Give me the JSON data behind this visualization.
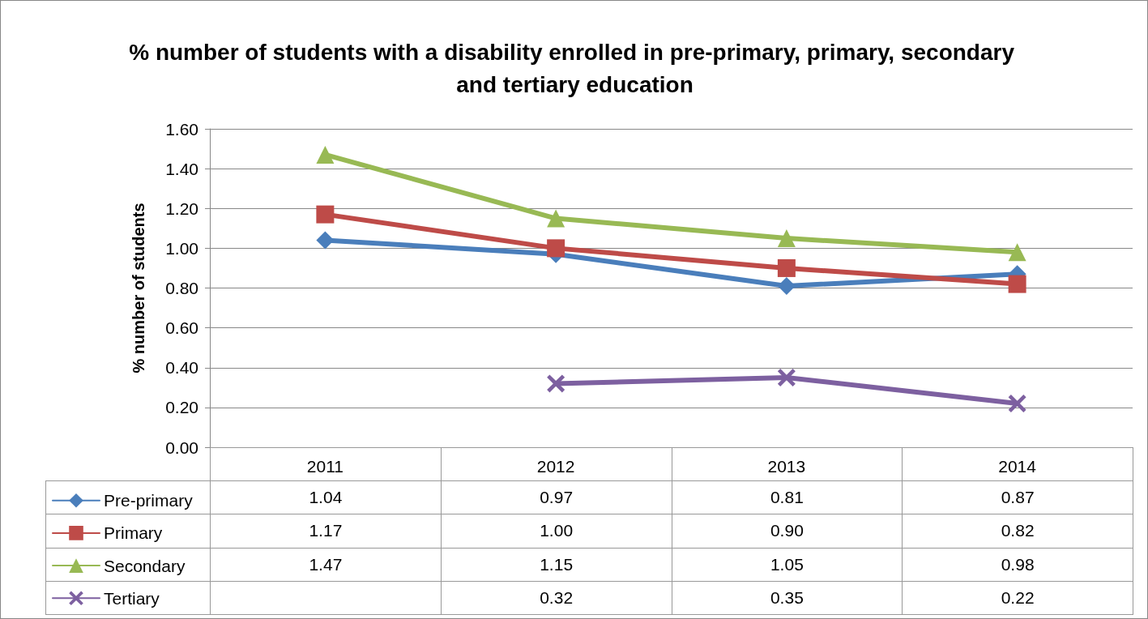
{
  "chart_data": {
    "type": "line",
    "title": "% number of students with a disability enrolled in pre-primary, primary, secondary and tertiary education",
    "ylabel": "% number of students",
    "categories": [
      "2011",
      "2012",
      "2013",
      "2014"
    ],
    "series": [
      {
        "name": "Pre-primary",
        "color": "#4a7ebb",
        "marker": "diamond",
        "values": [
          1.04,
          0.97,
          0.81,
          0.87
        ],
        "value_labels": [
          "1.04",
          "0.97",
          "0.81",
          "0.87"
        ]
      },
      {
        "name": "Primary",
        "color": "#be4b48",
        "marker": "square",
        "values": [
          1.17,
          1.0,
          0.9,
          0.82
        ],
        "value_labels": [
          "1.17",
          "1.00",
          "0.90",
          "0.82"
        ]
      },
      {
        "name": "Secondary",
        "color": "#98b954",
        "marker": "triangle",
        "values": [
          1.47,
          1.15,
          1.05,
          0.98
        ],
        "value_labels": [
          "1.47",
          "1.15",
          "1.05",
          "0.98"
        ]
      },
      {
        "name": "Tertiary",
        "color": "#7d60a0",
        "marker": "cross",
        "values": [
          null,
          0.32,
          0.35,
          0.22
        ],
        "value_labels": [
          null,
          "0.32",
          "0.35",
          "0.22"
        ]
      }
    ],
    "ylim": [
      0,
      1.6
    ],
    "yticks": [
      {
        "value": 0,
        "label": "0.00"
      },
      {
        "value": 0.2,
        "label": "0.20"
      },
      {
        "value": 0.4,
        "label": "0.40"
      },
      {
        "value": 0.6,
        "label": "0.60"
      },
      {
        "value": 0.8,
        "label": "0.80"
      },
      {
        "value": 1.0,
        "label": "1.00"
      },
      {
        "value": 1.2,
        "label": "1.20"
      },
      {
        "value": 1.4,
        "label": "1.40"
      },
      {
        "value": 1.6,
        "label": "1.60"
      }
    ],
    "grid": "y",
    "legend": "bottom",
    "line_style": "solid"
  }
}
